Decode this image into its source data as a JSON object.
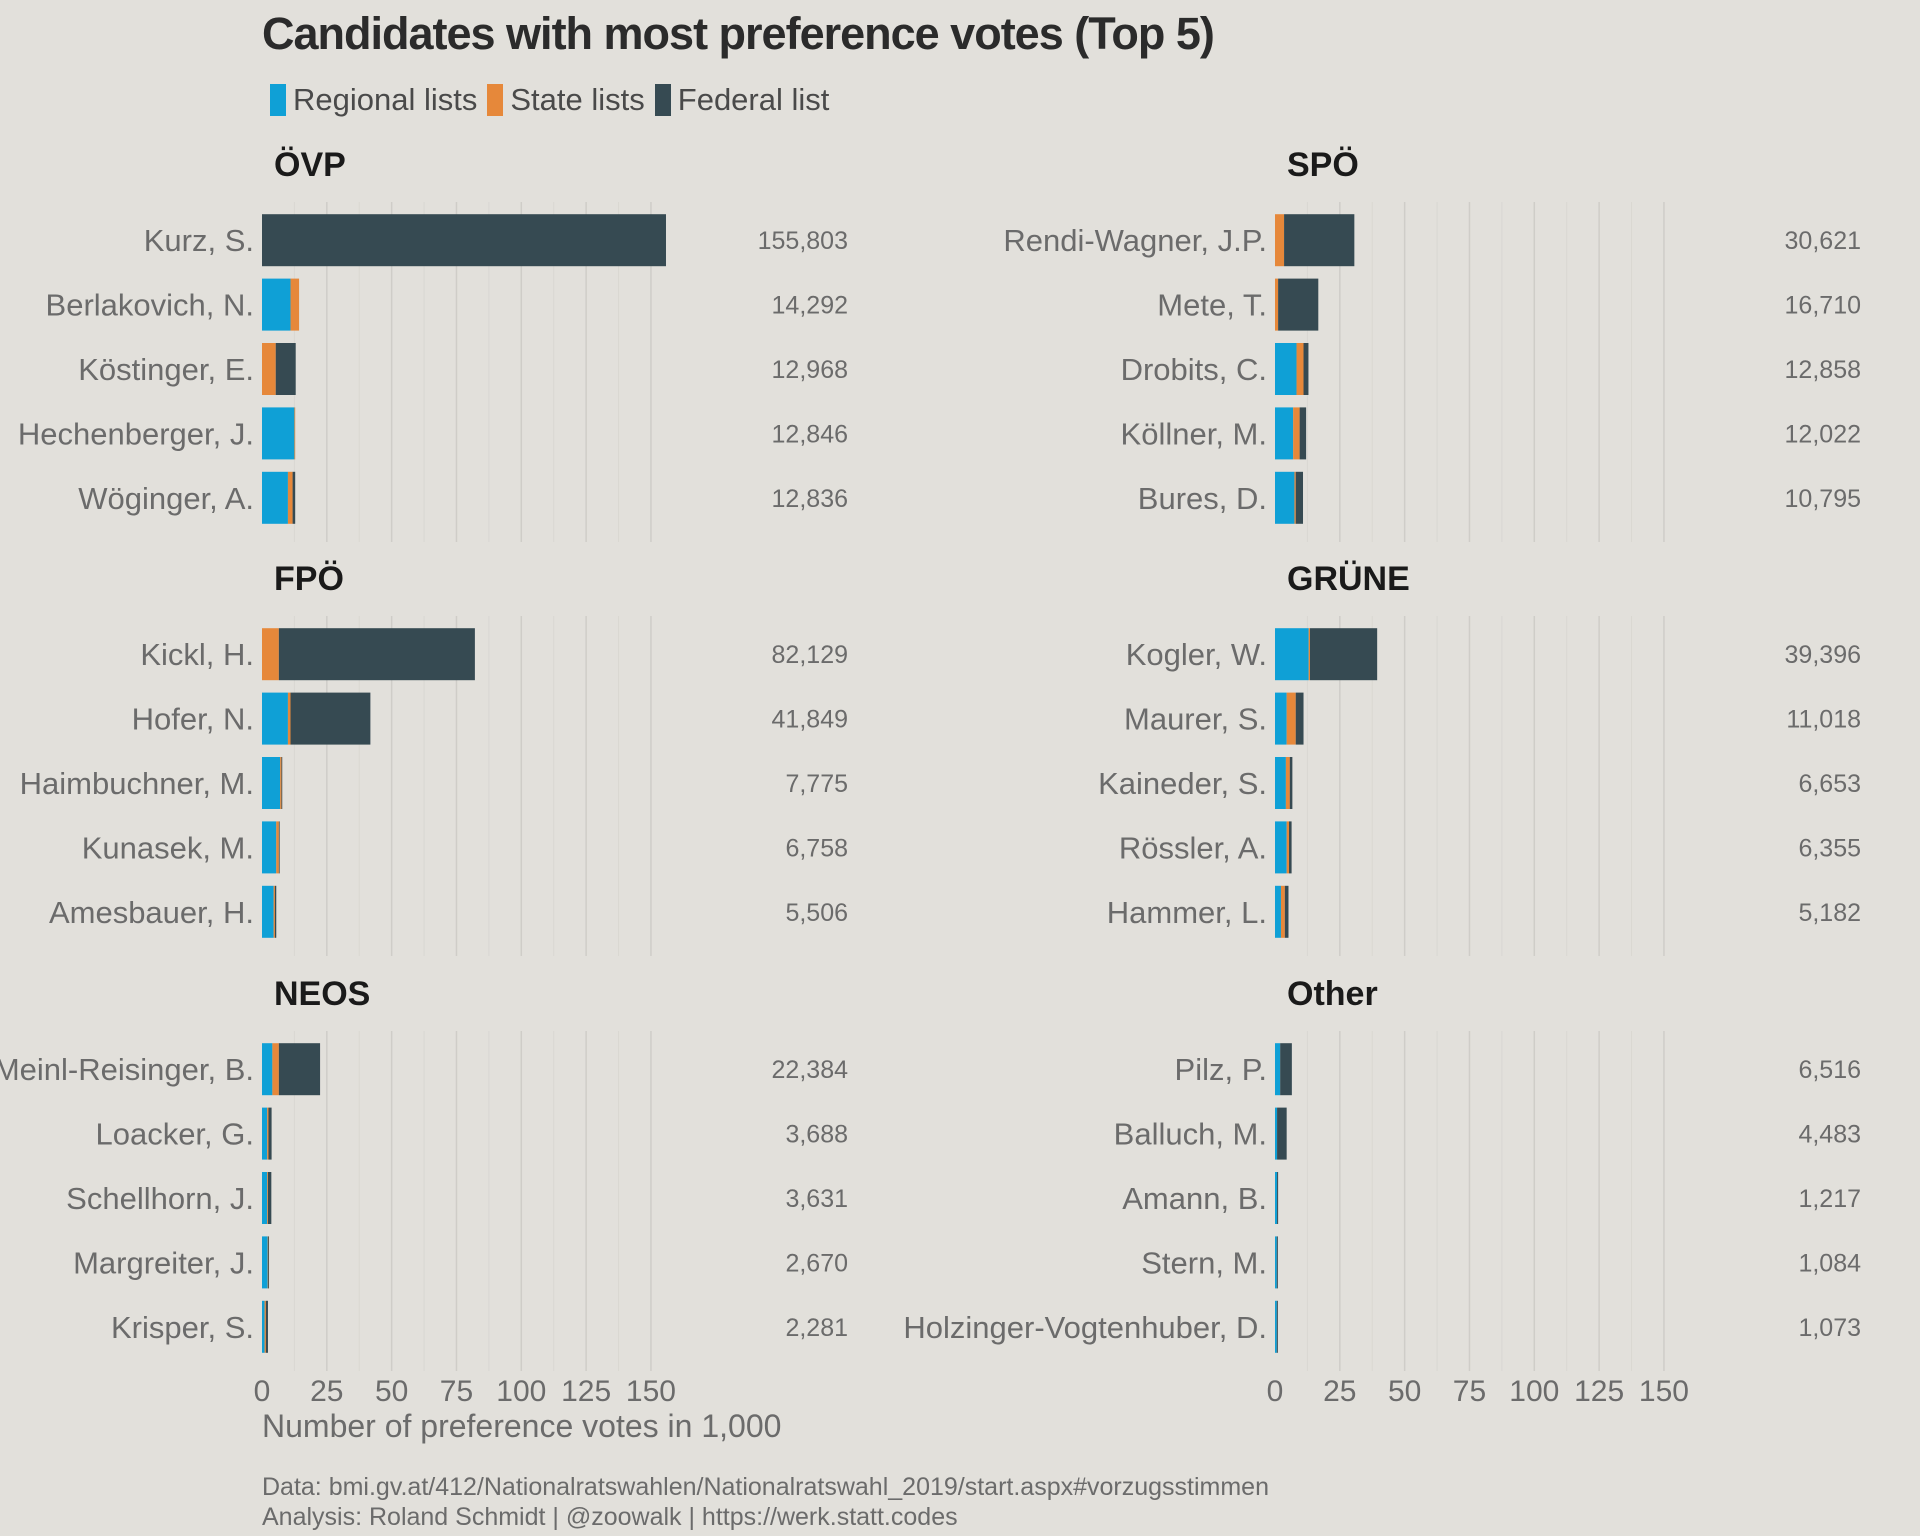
{
  "chart_data": {
    "type": "bar",
    "orientation": "horizontal",
    "stacked": true,
    "title": "Candidates with most preference votes (Top 5)",
    "legend": [
      {
        "name": "Regional lists",
        "color": "#0fa0d6"
      },
      {
        "name": "State lists",
        "color": "#e6883a"
      },
      {
        "name": "Federal list",
        "color": "#364a52"
      }
    ],
    "xlabel": "Number of preference votes in 1,000",
    "xlim": [
      0,
      155.803
    ],
    "xticks": [
      0,
      25,
      50,
      75,
      100,
      125,
      150
    ],
    "grid": true,
    "legend_position": "top-left",
    "panels": [
      {
        "party": "ÖVP",
        "candidates": [
          {
            "name": "Kurz, S.",
            "total": "155,803",
            "regional": 0,
            "state": 0,
            "federal": 155.8
          },
          {
            "name": "Berlakovich, N.",
            "total": "14,292",
            "regional": 11,
            "state": 3.3,
            "federal": 0
          },
          {
            "name": "Köstinger, E.",
            "total": "12,968",
            "regional": 0,
            "state": 5.3,
            "federal": 7.7
          },
          {
            "name": "Hechenberger, J.",
            "total": "12,846",
            "regional": 12.5,
            "state": 0.3,
            "federal": 0
          },
          {
            "name": "Wöginger, A.",
            "total": "12,836",
            "regional": 10,
            "state": 1.8,
            "federal": 1.0
          }
        ]
      },
      {
        "party": "SPÖ",
        "candidates": [
          {
            "name": "Rendi-Wagner, J.P.",
            "total": "30,621",
            "regional": 0,
            "state": 3.5,
            "federal": 27.1
          },
          {
            "name": "Mete, T.",
            "total": "16,710",
            "regional": 0,
            "state": 1.2,
            "federal": 15.5
          },
          {
            "name": "Drobits, C.",
            "total": "12,858",
            "regional": 8.3,
            "state": 2.7,
            "federal": 1.9
          },
          {
            "name": "Köllner, M.",
            "total": "12,022",
            "regional": 7,
            "state": 2.5,
            "federal": 2.5
          },
          {
            "name": "Bures, D.",
            "total": "10,795",
            "regional": 7.5,
            "state": 0.5,
            "federal": 2.8
          }
        ]
      },
      {
        "party": "FPÖ",
        "candidates": [
          {
            "name": "Kickl, H.",
            "total": "82,129",
            "regional": 0,
            "state": 6.5,
            "federal": 75.6
          },
          {
            "name": "Hofer, N.",
            "total": "41,849",
            "regional": 10,
            "state": 1.0,
            "federal": 30.8
          },
          {
            "name": "Haimbuchner, M.",
            "total": "7,775",
            "regional": 7,
            "state": 0.5,
            "federal": 0.3
          },
          {
            "name": "Kunasek, M.",
            "total": "6,758",
            "regional": 5.5,
            "state": 1.0,
            "federal": 0.3
          },
          {
            "name": "Amesbauer, H.",
            "total": "5,506",
            "regional": 4.5,
            "state": 0.5,
            "federal": 0.5
          }
        ]
      },
      {
        "party": "GRÜNE",
        "candidates": [
          {
            "name": "Kogler, W.",
            "total": "39,396",
            "regional": 13,
            "state": 0.5,
            "federal": 25.9
          },
          {
            "name": "Maurer, S.",
            "total": "11,018",
            "regional": 4.5,
            "state": 3.5,
            "federal": 3.0
          },
          {
            "name": "Kaineder, S.",
            "total": "6,653",
            "regional": 4.2,
            "state": 1.5,
            "federal": 1.0
          },
          {
            "name": "Rössler, A.",
            "total": "6,355",
            "regional": 4.5,
            "state": 0.9,
            "federal": 1.0
          },
          {
            "name": "Hammer, L.",
            "total": "5,182",
            "regional": 2.3,
            "state": 1.5,
            "federal": 1.4
          }
        ]
      },
      {
        "party": "NEOS",
        "candidates": [
          {
            "name": "Meinl-Reisinger, B.",
            "total": "22,384",
            "regional": 4,
            "state": 2.5,
            "federal": 15.9
          },
          {
            "name": "Loacker, G.",
            "total": "3,688",
            "regional": 2,
            "state": 0.5,
            "federal": 1.2
          },
          {
            "name": "Schellhorn, J.",
            "total": "3,631",
            "regional": 2,
            "state": 0.3,
            "federal": 1.3
          },
          {
            "name": "Margreiter, J.",
            "total": "2,670",
            "regional": 2.2,
            "state": 0.2,
            "federal": 0.3
          },
          {
            "name": "Krisper, S.",
            "total": "2,281",
            "regional": 1,
            "state": 0.5,
            "federal": 0.8
          }
        ]
      },
      {
        "party": "Other",
        "candidates": [
          {
            "name": "Pilz, P.",
            "total": "6,516",
            "regional": 2,
            "state": 0,
            "federal": 4.5
          },
          {
            "name": "Balluch, M.",
            "total": "4,483",
            "regional": 0.8,
            "state": 0,
            "federal": 3.7
          },
          {
            "name": "Amann, B.",
            "total": "1,217",
            "regional": 0.8,
            "state": 0,
            "federal": 0.4
          },
          {
            "name": "Stern, M.",
            "total": "1,084",
            "regional": 0.7,
            "state": 0,
            "federal": 0.4
          },
          {
            "name": "Holzinger-Vogtenhuber, D.",
            "total": "1,073",
            "regional": 0.7,
            "state": 0,
            "federal": 0.4
          }
        ]
      }
    ]
  },
  "caption": {
    "line1": "Data: bmi.gv.at/412/Nationalratswahlen/Nationalratswahl_2019/start.aspx#vorzugsstimmen",
    "line2": "Analysis: Roland Schmidt | @zoowalk | https://werk.statt.codes"
  }
}
